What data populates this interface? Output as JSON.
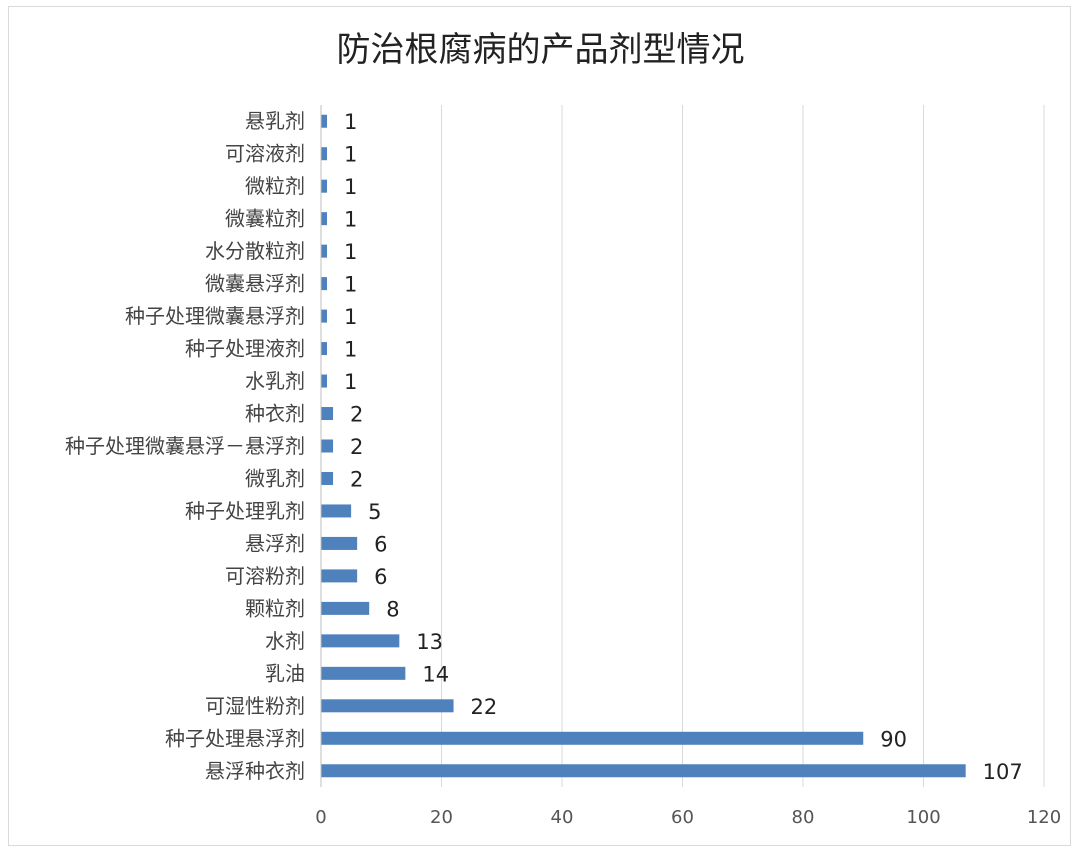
{
  "chart_data": {
    "type": "bar",
    "orientation": "horizontal",
    "title": "防治根腐病的产品剂型情况",
    "xlabel": "",
    "ylabel": "",
    "xlim": [
      0,
      120
    ],
    "x_ticks": [
      "0",
      "20",
      "40",
      "60",
      "80",
      "100",
      "120"
    ],
    "grid": "vertical",
    "legend": "none",
    "bar_color": "#4f81bd",
    "categories": [
      "悬乳剂",
      "可溶液剂",
      "微粒剂",
      "微囊粒剂",
      "水分散粒剂",
      "微囊悬浮剂",
      "种子处理微囊悬浮剂",
      "种子处理液剂",
      "水乳剂",
      "种衣剂",
      "种子处理微囊悬浮－悬浮剂",
      "微乳剂",
      "种子处理乳剂",
      "悬浮剂",
      "可溶粉剂",
      "颗粒剂",
      "水剂",
      "乳油",
      "可湿性粉剂",
      "种子处理悬浮剂",
      "悬浮种衣剂"
    ],
    "values": [
      1,
      1,
      1,
      1,
      1,
      1,
      1,
      1,
      1,
      2,
      2,
      2,
      5,
      6,
      6,
      8,
      13,
      14,
      22,
      90,
      107
    ],
    "value_labels": [
      "1",
      "1",
      "1",
      "1",
      "1",
      "1",
      "1",
      "1",
      "1",
      "2",
      "2",
      "2",
      "5",
      "6",
      "6",
      "8",
      "13",
      "14",
      "22",
      "90",
      "107"
    ]
  }
}
